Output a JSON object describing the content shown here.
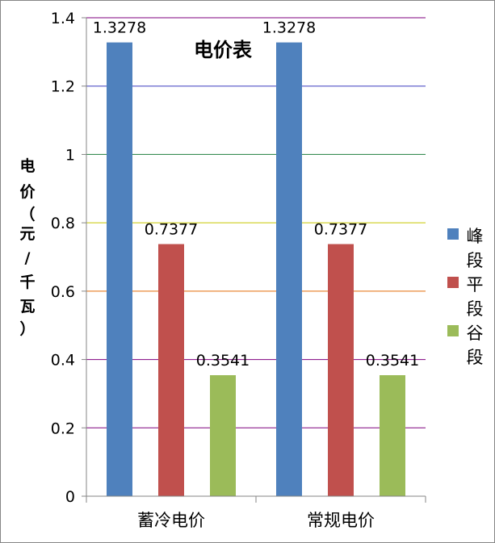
{
  "chart_data": {
    "type": "bar",
    "title": "电价表",
    "ylabel": "电价（元/千瓦）",
    "ylabel_chars": [
      "电",
      "价",
      "（",
      "元",
      "/",
      "千",
      "瓦",
      "）"
    ],
    "categories": [
      "蓄冷电价",
      "常规电价"
    ],
    "ylim": [
      0,
      1.4
    ],
    "yticks": [
      "0",
      "0.2",
      "0.4",
      "0.6",
      "0.8",
      "1",
      "1.2",
      "1.4"
    ],
    "grid": true,
    "legend_position": "right",
    "series": [
      {
        "name": "峰段",
        "color": "#4F81BD",
        "values": [
          1.3278,
          1.3278
        ],
        "labels": [
          "1.3278",
          "1.3278"
        ]
      },
      {
        "name": "平段",
        "color": "#C0504D",
        "values": [
          0.7377,
          0.7377
        ],
        "labels": [
          "0.7377",
          "0.7377"
        ]
      },
      {
        "name": "谷段",
        "color": "#9BBB59",
        "values": [
          0.3541,
          0.3541
        ],
        "labels": [
          "0.3541",
          "0.3541"
        ]
      }
    ],
    "gridline_colors": [
      "#7F007F",
      "#7F007F",
      "#7F007F",
      "#E46C0A",
      "#C8C800",
      "#1F7F3F",
      "#3F3FBF",
      "#7F007F"
    ]
  }
}
